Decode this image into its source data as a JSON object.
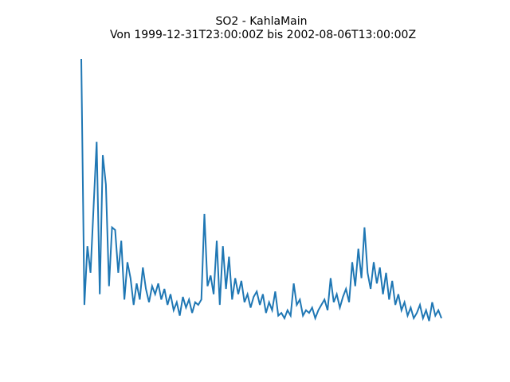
{
  "chart_data": {
    "type": "line",
    "title": "SO2 - KahlaMain",
    "subtitle": "Von 1999-12-31T23:00:00Z bis 2002-08-06T13:00:00Z",
    "color": "#1f77b4",
    "values": [
      100,
      8,
      30,
      20,
      45,
      69,
      12,
      64,
      53,
      15,
      37,
      36,
      20,
      32,
      10,
      24,
      18,
      8,
      16,
      10,
      22,
      14,
      9,
      15,
      12,
      16,
      10,
      14,
      8,
      12,
      6,
      9,
      4,
      11,
      7,
      10,
      5,
      9,
      8,
      10,
      42,
      15,
      19,
      12,
      32,
      8,
      30,
      14,
      26,
      10,
      18,
      12,
      17,
      9,
      12,
      7,
      11,
      13,
      8,
      12,
      5,
      9,
      6,
      13,
      4,
      5,
      3,
      6,
      4,
      16,
      8,
      10,
      4,
      6,
      5,
      7,
      3,
      6,
      8,
      10,
      6,
      18,
      9,
      12,
      7,
      11,
      14,
      9,
      24,
      15,
      29,
      18,
      37,
      20,
      14,
      24,
      16,
      22,
      12,
      20,
      10,
      17,
      8,
      12,
      6,
      9,
      4,
      7,
      3,
      5,
      8,
      3,
      6,
      2,
      9,
      4,
      6,
      3
    ]
  }
}
